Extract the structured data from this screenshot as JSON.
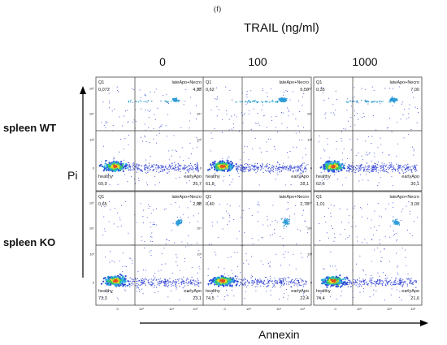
{
  "panel_label": "(f)",
  "trail_title": "TRAIL (ng/ml)",
  "doses": [
    "0",
    "100",
    "1000"
  ],
  "rows": [
    "spleen WT",
    "spleen KO"
  ],
  "y_title": "Pi",
  "x_title": "Annexin",
  "chart_data": {
    "type": "scatter",
    "title": "TRAIL (ng/ml)",
    "xlabel": "Annexin",
    "ylabel": "Pi",
    "columns": [
      "0",
      "100",
      "1000"
    ],
    "rows": [
      "spleen WT",
      "spleen KO"
    ],
    "quadrant_names": {
      "top_left": "Q1",
      "top_right": "lateApo+Necro",
      "bottom_left": "healthy",
      "bottom_right": "earlyApo"
    },
    "x_ticks": [
      "0",
      "10³",
      "10⁴",
      "10⁵"
    ],
    "y_ticks": [
      "0",
      "10³",
      "10⁴",
      "10⁵"
    ],
    "panels": [
      {
        "row": "spleen WT",
        "dose": "0",
        "q1": "0,072",
        "late": "4,33",
        "healthy": "69,9",
        "early": "25,7"
      },
      {
        "row": "spleen WT",
        "dose": "100",
        "q1": "0,62",
        "late": "9,50",
        "healthy": "61,8",
        "early": "28,1"
      },
      {
        "row": "spleen WT",
        "dose": "1000",
        "q1": "0,35",
        "late": "7,00",
        "healthy": "62,6",
        "early": "30,1"
      },
      {
        "row": "spleen KO",
        "dose": "0",
        "q1": "0,65",
        "late": "2,98",
        "healthy": "73,3",
        "early": "23,1"
      },
      {
        "row": "spleen KO",
        "dose": "100",
        "q1": "0,40",
        "late": "2,78",
        "healthy": "74,5",
        "early": "22,4"
      },
      {
        "row": "spleen KO",
        "dose": "1000",
        "q1": "1,01",
        "late": "3,03",
        "healthy": "74,4",
        "early": "21,6"
      }
    ]
  }
}
